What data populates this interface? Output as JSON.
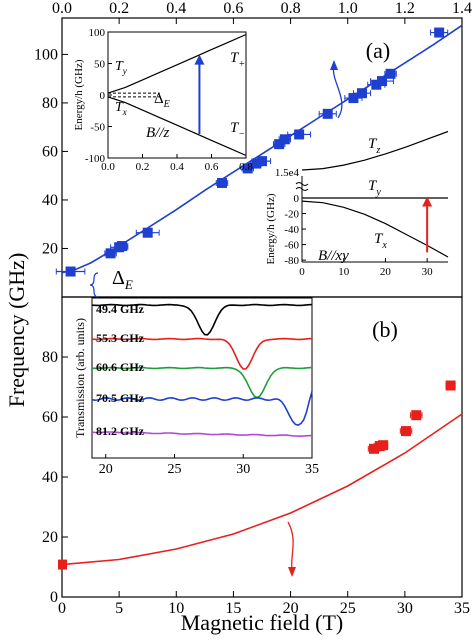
{
  "figure": {
    "ylabel": "Frequency (GHz)",
    "xlabel": "Magnetic field (T)",
    "top_ticks": [
      "0.0",
      "0.2",
      "0.4",
      "0.6",
      "0.8",
      "1.0",
      "1.2",
      "1.4"
    ],
    "bottom_ticks": [
      "0",
      "5",
      "10",
      "15",
      "20",
      "25",
      "30",
      "35"
    ],
    "left_ticks_a": [
      "0",
      "20",
      "40",
      "60",
      "80",
      "100"
    ],
    "left_ticks_b": [
      "0",
      "20",
      "40",
      "60",
      "80"
    ]
  },
  "chart_data": [
    {
      "type": "scatter",
      "panel": "(a)",
      "xlim": [
        0,
        1.4
      ],
      "ylim": [
        0,
        115
      ],
      "x_axis": "top",
      "annotations": [
        "(a)",
        "Δ_E"
      ],
      "series": [
        {
          "color": "#1f3fd0",
          "points": [
            {
              "x": 0.03,
              "y": 10.5,
              "xerr": 0.05
            },
            {
              "x": 0.17,
              "y": 18,
              "xerr": 0.02
            },
            {
              "x": 0.2,
              "y": 20.5,
              "xerr": 0.03
            },
            {
              "x": 0.21,
              "y": 21,
              "xerr": 0.02
            },
            {
              "x": 0.3,
              "y": 26.5,
              "xerr": 0.04
            },
            {
              "x": 0.56,
              "y": 47,
              "xerr": 0.02
            },
            {
              "x": 0.65,
              "y": 53,
              "xerr": 0.02
            },
            {
              "x": 0.68,
              "y": 55,
              "xerr": 0.02
            },
            {
              "x": 0.7,
              "y": 56,
              "xerr": 0.03
            },
            {
              "x": 0.76,
              "y": 63,
              "xerr": 0.02
            },
            {
              "x": 0.78,
              "y": 65,
              "xerr": 0.02
            },
            {
              "x": 0.83,
              "y": 67,
              "xerr": 0.04
            },
            {
              "x": 0.93,
              "y": 75.5,
              "xerr": 0.03
            },
            {
              "x": 1.02,
              "y": 82,
              "xerr": 0.03
            },
            {
              "x": 1.05,
              "y": 84,
              "xerr": 0.03
            },
            {
              "x": 1.1,
              "y": 87.5,
              "xerr": 0.03
            },
            {
              "x": 1.12,
              "y": 89,
              "xerr": 0.04
            },
            {
              "x": 1.15,
              "y": 92,
              "xerr": 0.02
            },
            {
              "x": 1.32,
              "y": 109,
              "xerr": 0.03
            }
          ]
        },
        {
          "type": "line",
          "color": "#1f3fd0",
          "x": [
            0,
            0.05,
            0.1,
            0.15,
            0.2,
            0.3,
            0.4,
            0.5,
            0.6,
            0.7,
            0.8,
            0.9,
            1.0,
            1.1,
            1.2,
            1.3,
            1.4
          ],
          "y": [
            10,
            11.5,
            14,
            17.5,
            21,
            28.5,
            36,
            44,
            51.5,
            59,
            66.5,
            74,
            81.5,
            89,
            96.5,
            104,
            112
          ]
        }
      ],
      "insets": [
        {
          "title": "B//z",
          "ylabel": "Energy/h (GHz)",
          "xlim": [
            0,
            0.8
          ],
          "ylim": [
            -100,
            100
          ],
          "xticks": [
            "0.0",
            "0.2",
            "0.4",
            "0.6",
            "0.8"
          ],
          "yticks": [
            "100",
            "50",
            "0",
            "-50",
            "-100"
          ],
          "labels": [
            "T_y",
            "T_x",
            "T_+",
            "T_−",
            "Δ_E"
          ],
          "x": [
            0,
            0.1,
            0.2,
            0.3,
            0.4,
            0.5,
            0.6,
            0.7,
            0.8
          ],
          "upper": [
            3,
            12,
            24,
            36,
            48,
            60,
            72,
            84,
            96
          ],
          "lower": [
            -3,
            -12,
            -24,
            -36,
            -48,
            -60,
            -72,
            -84,
            -96
          ]
        },
        {
          "title": "B//xy",
          "ylabel": "Energy/h (GHz)",
          "xlim": [
            0,
            35
          ],
          "ylim": [
            -80,
            5
          ],
          "xticks": [
            "0",
            "10",
            "20",
            "30"
          ],
          "yticks": [
            "0",
            "-20",
            "-40",
            "-60",
            "-80"
          ],
          "break_label": "1.5e4",
          "labels": [
            "T_z",
            "T_y",
            "T_x"
          ],
          "x": [
            0,
            5,
            10,
            15,
            20,
            25,
            30,
            35
          ],
          "tx": [
            -4,
            -6,
            -12,
            -21,
            -33,
            -47,
            -61,
            -76
          ],
          "tz": [
            0,
            4,
            14,
            28,
            46,
            66,
            88,
            110
          ]
        }
      ]
    },
    {
      "type": "scatter",
      "panel": "(b)",
      "xlim": [
        0,
        35
      ],
      "ylim": [
        0,
        100
      ],
      "x_axis": "bottom",
      "annotations": [
        "(b)"
      ],
      "series": [
        {
          "color": "#e8201c",
          "points": [
            {
              "x": 27.3,
              "y": 49.4,
              "xerr": 0.5
            },
            {
              "x": 27.8,
              "y": 50.3,
              "xerr": 0.5
            },
            {
              "x": 28.1,
              "y": 50.6,
              "xerr": 0.4
            },
            {
              "x": 30.1,
              "y": 55.3,
              "xerr": 0.5
            },
            {
              "x": 31.0,
              "y": 60.6,
              "xerr": 0.5
            },
            {
              "x": 34.0,
              "y": 70.5,
              "xerr": 0.4
            }
          ]
        },
        {
          "type": "line",
          "color": "#e8201c",
          "x": [
            0,
            5,
            10,
            15,
            20,
            25,
            30,
            35
          ],
          "y": [
            10.8,
            12.5,
            16,
            21,
            28,
            37,
            48,
            61
          ]
        }
      ],
      "inset": {
        "xlabel": "",
        "ylabel": "Transmission (arb. units)",
        "xlim": [
          19,
          35
        ],
        "xticks": [
          "20",
          "25",
          "30",
          "35"
        ],
        "traces": [
          {
            "label": "49.4 GHz",
            "color": "#000000",
            "dip": 27.3
          },
          {
            "label": "55.3 GHz",
            "color": "#e8201c",
            "dip": 30.1
          },
          {
            "label": "60.6 GHz",
            "color": "#1f9e3a",
            "dip": 31.0
          },
          {
            "label": "70.5 GHz",
            "color": "#1f3fd0",
            "dip": 34.0
          },
          {
            "label": "81.2 GHz",
            "color": "#b04ad6",
            "dip": null
          }
        ]
      }
    }
  ]
}
